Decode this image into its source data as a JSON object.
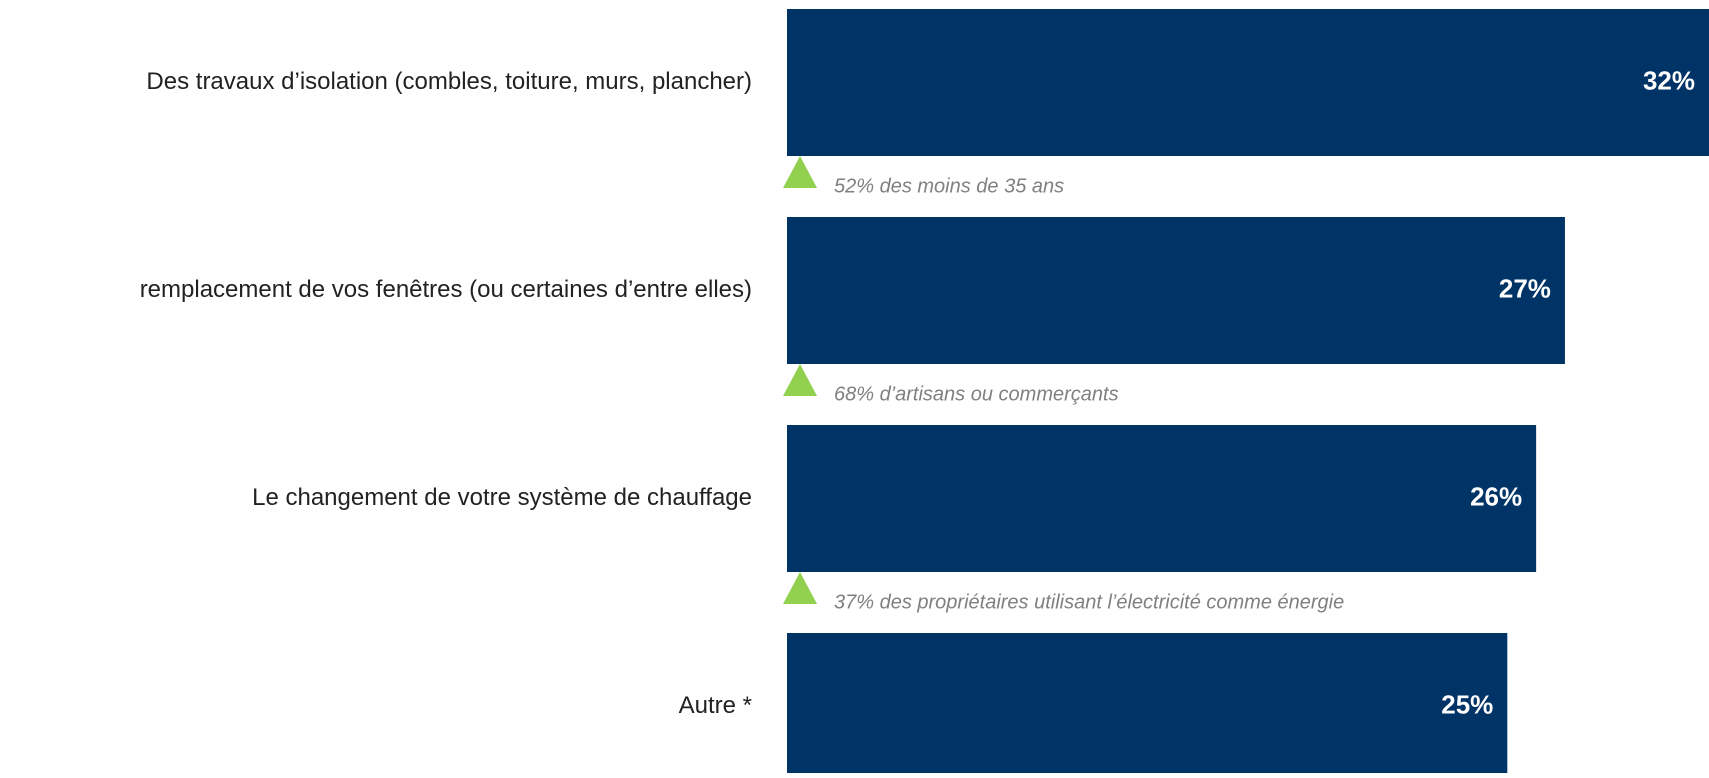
{
  "chart_data": {
    "type": "bar",
    "orientation": "horizontal",
    "categories": [
      "Des travaux d’isolation (combles, toiture, murs, plancher)",
      "remplacement de vos fenêtres (ou certaines d’entre elles)",
      "Le changement de votre système de chauffage",
      "Autre *"
    ],
    "values": [
      32,
      27,
      26,
      25
    ],
    "value_labels": [
      "32%",
      "27%",
      "26%",
      "25%"
    ],
    "color": "#003366",
    "annotations": [
      "52% des moins de 35 ans",
      "68% d’artisans ou commerçants",
      "37% des propriétaires utilisant l’électricité comme énergie"
    ],
    "annotation_marker_color": "#92d050"
  }
}
